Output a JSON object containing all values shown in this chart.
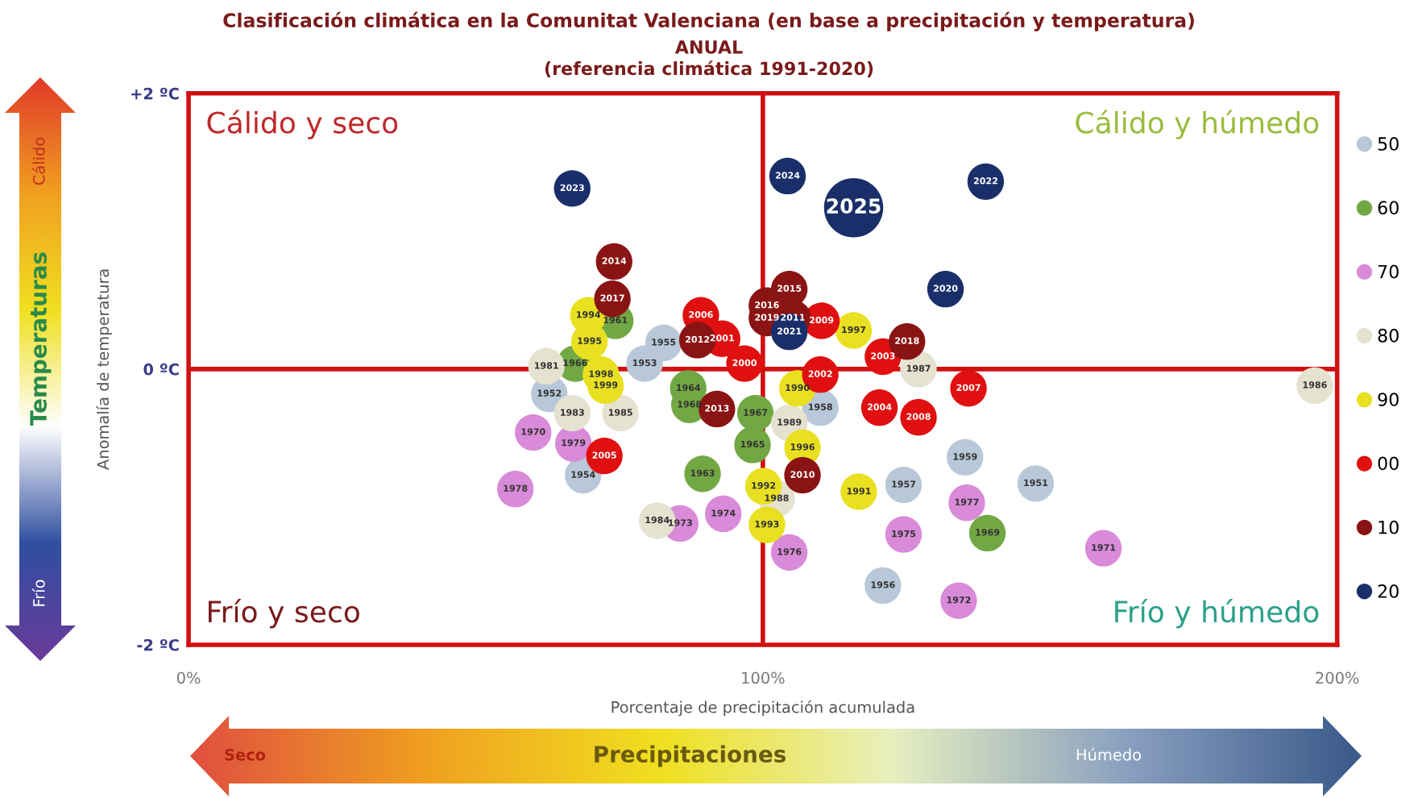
{
  "chart_data": {
    "type": "bubble",
    "title": "Clasificación climática en la Comunitat Valenciana (en base a precipitación y temperatura)",
    "subtitle": "ANUAL\n(referencia climática 1991-2020)",
    "xlabel": "Porcentaje de precipitación acumulada",
    "ylabel": "Anomalía de temperatura",
    "xlim": [
      0,
      200
    ],
    "xticks": [
      {
        "value": 0,
        "label": "0%"
      },
      {
        "value": 100,
        "label": "100%"
      },
      {
        "value": 200,
        "label": "200%"
      }
    ],
    "ylim": [
      -2,
      2
    ],
    "yticks": [
      {
        "value": -2,
        "label": "-2 ºC"
      },
      {
        "value": 0,
        "label": "0 ºC"
      },
      {
        "value": 2,
        "label": "+2 ºC"
      }
    ],
    "grid": false,
    "legend": "right",
    "marker": "circle",
    "ref_lines": [
      {
        "axis": "x",
        "value": 100,
        "label": null,
        "color": "#d01010"
      },
      {
        "axis": "y",
        "value": 0,
        "label": null,
        "color": "#d01010"
      }
    ],
    "annotations": [
      "Cálido y seco",
      "Cálido y húmedo",
      "Frío y seco",
      "Frío y húmedo",
      "Cálido",
      "Temperaturas",
      "Frío",
      "Seco",
      "Precipitaciones",
      "Húmedo",
      {
        "text": "1955",
        "x": 82.7,
        "y": 0.19
      },
      {
        "text": "1953",
        "x": 79.4,
        "y": 0.04
      },
      {
        "text": "1952",
        "x": 62.8,
        "y": -0.18
      },
      {
        "text": "1958",
        "x": 110.0,
        "y": -0.28
      },
      {
        "text": "1954",
        "x": 68.7,
        "y": -0.77
      },
      {
        "text": "1959",
        "x": 135.2,
        "y": -0.64
      },
      {
        "text": "1957",
        "x": 124.5,
        "y": -0.84
      },
      {
        "text": "1951",
        "x": 147.5,
        "y": -0.83
      },
      {
        "text": "1956",
        "x": 120.9,
        "y": -1.57
      },
      {
        "text": "1961",
        "x": 74.3,
        "y": 0.35
      },
      {
        "text": "1966",
        "x": 67.3,
        "y": 0.04
      },
      {
        "text": "1964",
        "x": 87.0,
        "y": -0.14
      },
      {
        "text": "1968",
        "x": 87.2,
        "y": -0.26
      },
      {
        "text": "1967",
        "x": 98.7,
        "y": -0.32
      },
      {
        "text": "1965",
        "x": 98.2,
        "y": -0.55
      },
      {
        "text": "1963",
        "x": 89.5,
        "y": -0.76
      },
      {
        "text": "1969",
        "x": 139.1,
        "y": -1.19
      },
      {
        "text": "1970",
        "x": 60.0,
        "y": -0.46
      },
      {
        "text": "1979",
        "x": 67.0,
        "y": -0.54
      },
      {
        "text": "1978",
        "x": 56.9,
        "y": -0.87
      },
      {
        "text": "1973",
        "x": 85.6,
        "y": -1.12
      },
      {
        "text": "1974",
        "x": 93.1,
        "y": -1.05
      },
      {
        "text": "1976",
        "x": 104.6,
        "y": -1.33
      },
      {
        "text": "1977",
        "x": 135.5,
        "y": -0.97
      },
      {
        "text": "1975",
        "x": 124.5,
        "y": -1.2
      },
      {
        "text": "1972",
        "x": 134.1,
        "y": -1.68
      },
      {
        "text": "1971",
        "x": 159.3,
        "y": -1.3
      },
      {
        "text": "1981",
        "x": 62.3,
        "y": 0.02
      },
      {
        "text": "1983",
        "x": 66.8,
        "y": -0.32
      },
      {
        "text": "1985",
        "x": 75.2,
        "y": -0.32
      },
      {
        "text": "1987",
        "x": 127.1,
        "y": 0.0
      },
      {
        "text": "1984",
        "x": 81.6,
        "y": -1.1
      },
      {
        "text": "1986",
        "x": 196.1,
        "y": -0.12
      },
      {
        "text": "1988",
        "x": 102.4,
        "y": -0.94
      },
      {
        "text": "1989",
        "x": 104.6,
        "y": -0.39
      },
      {
        "text": "1990",
        "x": 106.0,
        "y": -0.14
      },
      {
        "text": "1991",
        "x": 116.7,
        "y": -0.89
      },
      {
        "text": "1992",
        "x": 100.1,
        "y": -0.85
      },
      {
        "text": "1993",
        "x": 100.7,
        "y": -1.13
      },
      {
        "text": "1994",
        "x": 69.6,
        "y": 0.39
      },
      {
        "text": "1995",
        "x": 69.8,
        "y": 0.2
      },
      {
        "text": "1996",
        "x": 106.9,
        "y": -0.57
      },
      {
        "text": "1997",
        "x": 115.8,
        "y": 0.28
      },
      {
        "text": "1998",
        "x": 71.8,
        "y": -0.04
      },
      {
        "text": "1999",
        "x": 72.6,
        "y": -0.12
      },
      {
        "text": "2000",
        "x": 96.8,
        "y": 0.04
      },
      {
        "text": "2001",
        "x": 92.9,
        "y": 0.22
      },
      {
        "text": "2002",
        "x": 110.0,
        "y": -0.04
      },
      {
        "text": "2003",
        "x": 120.9,
        "y": 0.09
      },
      {
        "text": "2004",
        "x": 120.3,
        "y": -0.28
      },
      {
        "text": "2005",
        "x": 72.4,
        "y": -0.63
      },
      {
        "text": "2006",
        "x": 89.2,
        "y": 0.39
      },
      {
        "text": "2007",
        "x": 135.8,
        "y": -0.14
      },
      {
        "text": "2008",
        "x": 127.1,
        "y": -0.35
      },
      {
        "text": "2009",
        "x": 110.2,
        "y": 0.35
      },
      {
        "text": "2010",
        "x": 106.9,
        "y": -0.77
      },
      {
        "text": "2011",
        "x": 105.2,
        "y": 0.37
      },
      {
        "text": "2012",
        "x": 88.6,
        "y": 0.21
      },
      {
        "text": "2013",
        "x": 92.0,
        "y": -0.29
      },
      {
        "text": "2014",
        "x": 74.1,
        "y": 0.78
      },
      {
        "text": "2015",
        "x": 104.6,
        "y": 0.58
      },
      {
        "text": "2016",
        "x": 100.7,
        "y": 0.46
      },
      {
        "text": "2017",
        "x": 73.8,
        "y": 0.51
      },
      {
        "text": "2018",
        "x": 125.1,
        "y": 0.2
      },
      {
        "text": "2019",
        "x": 100.7,
        "y": 0.37
      },
      {
        "text": "2020",
        "x": 131.8,
        "y": 0.58
      },
      {
        "text": "2021",
        "x": 104.6,
        "y": 0.27
      },
      {
        "text": "2022",
        "x": 138.8,
        "y": 1.36
      },
      {
        "text": "2023",
        "x": 66.8,
        "y": 1.31
      },
      {
        "text": "2024",
        "x": 104.3,
        "y": 1.4
      },
      {
        "text": "2025",
        "x": 115.8,
        "y": 1.17
      }
    ],
    "series": [
      {
        "name": "50",
        "color": "#b8c8d8",
        "x": [
          82.7,
          79.4,
          62.8,
          110.0,
          68.7,
          135.2,
          124.5,
          147.5,
          120.9
        ],
        "values": [
          0.19,
          0.04,
          -0.18,
          -0.28,
          -0.77,
          -0.64,
          -0.84,
          -0.83,
          -1.57
        ],
        "sizes": [
          0.38,
          0.38,
          0.38,
          0.38,
          0.38,
          0.38,
          0.38,
          0.38,
          0.38
        ]
      },
      {
        "name": "60",
        "color": "#72a844",
        "x": [
          74.3,
          67.3,
          87.0,
          87.2,
          98.7,
          98.2,
          89.5,
          139.1
        ],
        "values": [
          0.35,
          0.04,
          -0.14,
          -0.26,
          -0.32,
          -0.55,
          -0.76,
          -1.19
        ],
        "sizes": [
          0.38,
          0.38,
          0.38,
          0.38,
          0.38,
          0.38,
          0.38,
          0.38
        ]
      },
      {
        "name": "70",
        "color": "#d98ad9",
        "x": [
          60.0,
          67.0,
          56.9,
          85.6,
          93.1,
          104.6,
          135.5,
          124.5,
          134.1,
          159.3
        ],
        "values": [
          -0.46,
          -0.54,
          -0.87,
          -1.12,
          -1.05,
          -1.33,
          -0.97,
          -1.2,
          -1.68,
          -1.3
        ],
        "sizes": [
          0.38,
          0.38,
          0.38,
          0.38,
          0.38,
          0.38,
          0.38,
          0.38,
          0.38,
          0.38
        ]
      },
      {
        "name": "80",
        "color": "#e6e2d0",
        "x": [
          62.3,
          66.8,
          75.2,
          127.1,
          81.6,
          196.1,
          102.4,
          104.6
        ],
        "values": [
          0.02,
          -0.32,
          -0.32,
          0.0,
          -1.1,
          -0.12,
          -0.94,
          -0.39
        ],
        "sizes": [
          0.38,
          0.38,
          0.38,
          0.38,
          0.38,
          0.38,
          0.38,
          0.38
        ]
      },
      {
        "name": "90",
        "color": "#e8e020",
        "x": [
          106.0,
          116.7,
          100.1,
          100.7,
          69.6,
          69.8,
          106.9,
          115.8,
          71.8,
          72.6
        ],
        "values": [
          -0.14,
          -0.89,
          -0.85,
          -1.13,
          0.39,
          0.2,
          -0.57,
          0.28,
          -0.04,
          -0.12
        ],
        "sizes": [
          0.38,
          0.38,
          0.38,
          0.38,
          0.38,
          0.38,
          0.38,
          0.38,
          0.38,
          0.38
        ]
      },
      {
        "name": "00",
        "color": "#e01010",
        "x": [
          96.8,
          92.9,
          110.0,
          120.9,
          120.3,
          72.4,
          89.2,
          135.8,
          127.1,
          110.2
        ],
        "values": [
          0.04,
          0.22,
          -0.04,
          0.09,
          -0.28,
          -0.63,
          0.39,
          -0.14,
          -0.35,
          0.35
        ],
        "sizes": [
          0.38,
          0.38,
          0.38,
          0.38,
          0.38,
          0.38,
          0.38,
          0.38,
          0.38,
          0.38
        ]
      },
      {
        "name": "10",
        "color": "#8a1414",
        "x": [
          106.9,
          105.2,
          88.6,
          92.0,
          74.1,
          104.6,
          100.7,
          73.8,
          125.1,
          100.7
        ],
        "values": [
          -0.77,
          0.37,
          0.21,
          -0.29,
          0.78,
          0.58,
          0.46,
          0.51,
          0.2,
          0.37
        ],
        "sizes": [
          0.38,
          0.38,
          0.38,
          0.38,
          0.38,
          0.38,
          0.38,
          0.38,
          0.38,
          0.38
        ]
      },
      {
        "name": "20",
        "color": "#1a2f6a",
        "x": [
          131.8,
          104.6,
          138.8,
          66.8,
          104.3,
          115.8
        ],
        "values": [
          0.58,
          0.27,
          1.36,
          1.31,
          1.4,
          1.17
        ],
        "sizes": [
          0.38,
          0.38,
          0.38,
          0.38,
          0.38,
          1
        ]
      }
    ]
  }
}
